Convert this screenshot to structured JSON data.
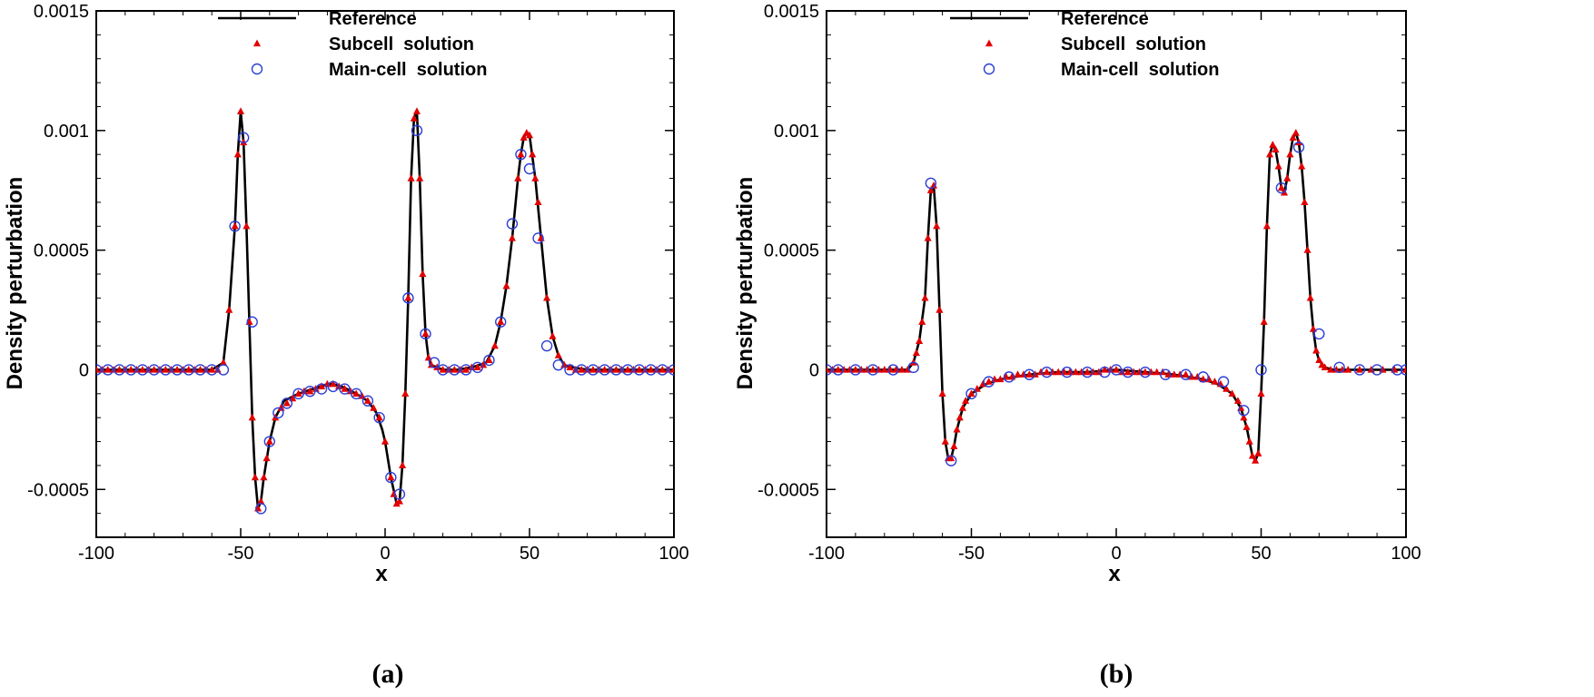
{
  "chart_data": [
    {
      "type": "line",
      "panel_label": "(a)",
      "xlabel": "x",
      "ylabel": "Density perturbation",
      "xlim": [
        -100,
        100
      ],
      "ylim": [
        -0.0007,
        0.0015
      ],
      "x_ticks": [
        -100,
        -50,
        0,
        50,
        100
      ],
      "x_tick_labels": [
        "-100",
        "-50",
        "0",
        "50",
        "100"
      ],
      "y_ticks": [
        -0.0005,
        0,
        0.0005,
        0.001,
        0.0015
      ],
      "y_tick_labels": [
        "-0.0005",
        "0",
        "0.0005",
        "0.001",
        "0.0015"
      ],
      "legend": [
        "Reference",
        "Subcell  solution",
        "Main-cell  solution"
      ],
      "legend_position": "top-center",
      "grid": false,
      "series": [
        {
          "name": "Reference",
          "style": "line",
          "color": "#000000",
          "x": [
            -100,
            -60,
            -56,
            -54,
            -52,
            -51,
            -50,
            -49,
            -48,
            -47,
            -46,
            -45,
            -44,
            -43,
            -42,
            -40,
            -38,
            -35,
            -30,
            -25,
            -20,
            -18,
            -15,
            -10,
            -6,
            -3,
            -1,
            0,
            2,
            4,
            5,
            6,
            7,
            8,
            9,
            10,
            11,
            12,
            13,
            14,
            15,
            16,
            18,
            20,
            25,
            30,
            35,
            38,
            40,
            42,
            44,
            46,
            47,
            48,
            49,
            50,
            52,
            54,
            56,
            58,
            60,
            62,
            65,
            70,
            100
          ],
          "y": [
            0,
            0,
            3e-05,
            0.00025,
            0.0006,
            0.0009,
            0.00108,
            0.00095,
            0.0006,
            0.0002,
            -0.0002,
            -0.00045,
            -0.00058,
            -0.00055,
            -0.00045,
            -0.0003,
            -0.0002,
            -0.00013,
            -0.0001,
            -8e-05,
            -6e-05,
            -6e-05,
            -7e-05,
            -0.0001,
            -0.00013,
            -0.00018,
            -0.00025,
            -0.0003,
            -0.00045,
            -0.00056,
            -0.00055,
            -0.0004,
            -0.0001,
            0.0003,
            0.0008,
            0.00105,
            0.00108,
            0.0008,
            0.0004,
            0.00015,
            5e-05,
            2e-05,
            1e-05,
            0,
            0,
            1e-05,
            3e-05,
            0.0001,
            0.0002,
            0.00035,
            0.00055,
            0.0008,
            0.0009,
            0.00097,
            0.00099,
            0.00098,
            0.0008,
            0.00055,
            0.0003,
            0.00014,
            6e-05,
            2e-05,
            1e-05,
            0,
            0
          ]
        },
        {
          "name": "Subcell  solution",
          "style": "triangle",
          "color": "#e00000",
          "x": [
            -100,
            -98,
            -96,
            -94,
            -92,
            -90,
            -88,
            -86,
            -84,
            -82,
            -80,
            -78,
            -76,
            -74,
            -72,
            -70,
            -68,
            -66,
            -64,
            -62,
            -60,
            -58,
            -56,
            -54,
            -52,
            -51,
            -50,
            -49,
            -48,
            -47,
            -46,
            -45,
            -44,
            -43,
            -42,
            -41,
            -40,
            -38,
            -36,
            -34,
            -32,
            -30,
            -28,
            -26,
            -24,
            -22,
            -20,
            -18,
            -16,
            -14,
            -12,
            -10,
            -8,
            -6,
            -4,
            -2,
            0,
            2,
            3,
            4,
            5,
            6,
            7,
            8,
            9,
            10,
            11,
            12,
            13,
            14,
            15,
            16,
            18,
            20,
            22,
            24,
            26,
            28,
            30,
            32,
            34,
            36,
            38,
            40,
            42,
            44,
            46,
            47,
            48,
            49,
            50,
            51,
            52,
            53,
            54,
            56,
            58,
            60,
            62,
            64,
            66,
            68,
            70,
            72,
            74,
            76,
            78,
            80,
            82,
            84,
            86,
            88,
            90,
            92,
            94,
            96,
            98,
            100
          ],
          "y": [
            0,
            0,
            0,
            0,
            0,
            0,
            0,
            0,
            0,
            0,
            0,
            0,
            0,
            0,
            0,
            0,
            0,
            0,
            0,
            0,
            0,
            0,
            3e-05,
            0.00025,
            0.0006,
            0.0009,
            0.00108,
            0.00095,
            0.0006,
            0.0002,
            -0.0002,
            -0.00045,
            -0.00058,
            -0.00055,
            -0.00045,
            -0.00037,
            -0.0003,
            -0.0002,
            -0.00016,
            -0.00014,
            -0.00012,
            -0.0001,
            -9e-05,
            -9e-05,
            -8e-05,
            -7e-05,
            -6e-05,
            -6e-05,
            -7e-05,
            -8e-05,
            -9e-05,
            -0.0001,
            -0.00011,
            -0.00013,
            -0.00016,
            -0.0002,
            -0.0003,
            -0.00045,
            -0.00052,
            -0.00056,
            -0.00055,
            -0.0004,
            -0.0001,
            0.0003,
            0.0008,
            0.00105,
            0.00108,
            0.0008,
            0.0004,
            0.00015,
            5e-05,
            2e-05,
            1e-05,
            0,
            0,
            0,
            0,
            0,
            1e-05,
            1e-05,
            2e-05,
            4e-05,
            0.0001,
            0.0002,
            0.00035,
            0.00055,
            0.0008,
            0.0009,
            0.00097,
            0.00099,
            0.00098,
            0.0009,
            0.0008,
            0.0007,
            0.00055,
            0.0003,
            0.00014,
            6e-05,
            2e-05,
            1e-05,
            0,
            0,
            0,
            0,
            0,
            0,
            0,
            0,
            0,
            0,
            0,
            0,
            0,
            0,
            0,
            0,
            0,
            0
          ]
        },
        {
          "name": "Main-cell  solution",
          "style": "circle",
          "color": "#2b3fd6",
          "x": [
            -100,
            -96,
            -92,
            -88,
            -84,
            -80,
            -76,
            -72,
            -68,
            -64,
            -60,
            -56,
            -52,
            -49,
            -46,
            -43,
            -40,
            -37,
            -34,
            -30,
            -26,
            -22,
            -18,
            -14,
            -10,
            -6,
            -2,
            2,
            5,
            8,
            11,
            14,
            17,
            20,
            24,
            28,
            32,
            36,
            40,
            44,
            47,
            50,
            53,
            56,
            60,
            64,
            68,
            72,
            76,
            80,
            84,
            88,
            92,
            96,
            100
          ],
          "y": [
            0,
            0,
            0,
            0,
            0,
            0,
            0,
            0,
            0,
            0,
            0,
            0,
            0.0006,
            0.00097,
            0.0002,
            -0.00058,
            -0.0003,
            -0.00018,
            -0.00014,
            -0.0001,
            -9e-05,
            -8e-05,
            -7e-05,
            -8e-05,
            -0.0001,
            -0.00013,
            -0.0002,
            -0.00045,
            -0.00052,
            0.0003,
            0.001,
            0.00015,
            3e-05,
            0,
            0,
            0,
            1e-05,
            4e-05,
            0.0002,
            0.00061,
            0.0009,
            0.00084,
            0.00055,
            0.0001,
            2e-05,
            0,
            0,
            0,
            0,
            0,
            0,
            0,
            0,
            0,
            0
          ]
        }
      ]
    },
    {
      "type": "line",
      "panel_label": "(b)",
      "xlabel": "x",
      "ylabel": "Density perturbation",
      "xlim": [
        -100,
        100
      ],
      "ylim": [
        -0.0007,
        0.0015
      ],
      "x_ticks": [
        -100,
        -50,
        0,
        50,
        100
      ],
      "x_tick_labels": [
        "-100",
        "-50",
        "0",
        "50",
        "100"
      ],
      "y_ticks": [
        -0.0005,
        0,
        0.0005,
        0.001,
        0.0015
      ],
      "y_tick_labels": [
        "-0.0005",
        "0",
        "0.0005",
        "0.001",
        "0.0015"
      ],
      "legend": [
        "Reference",
        "Subcell  solution",
        "Main-cell  solution"
      ],
      "legend_position": "top-center",
      "grid": false,
      "series": [
        {
          "name": "Reference",
          "style": "line",
          "color": "#000000",
          "x": [
            -100,
            -72,
            -70,
            -68,
            -66,
            -65,
            -64,
            -63,
            -62,
            -61,
            -60,
            -59,
            -58,
            -57,
            -56,
            -55,
            -53,
            -50,
            -45,
            -40,
            -30,
            -20,
            -10,
            0,
            10,
            20,
            30,
            35,
            40,
            43,
            45,
            46,
            47,
            48,
            49,
            50,
            51,
            52,
            53,
            54,
            55,
            56,
            57,
            58,
            59,
            60,
            61,
            62,
            63,
            64,
            65,
            66,
            67,
            68,
            69,
            70,
            72,
            75,
            100
          ],
          "y": [
            0,
            0,
            3e-05,
            0.00012,
            0.0003,
            0.00055,
            0.00075,
            0.00077,
            0.0006,
            0.00025,
            -0.0001,
            -0.0003,
            -0.00037,
            -0.00037,
            -0.00032,
            -0.00025,
            -0.00016,
            -0.0001,
            -6e-05,
            -4e-05,
            -2e-05,
            -1e-05,
            -1e-05,
            0,
            -1e-05,
            -2e-05,
            -4e-05,
            -6e-05,
            -0.0001,
            -0.00016,
            -0.00024,
            -0.0003,
            -0.00036,
            -0.00038,
            -0.00035,
            -0.0001,
            0.0002,
            0.0006,
            0.0009,
            0.00094,
            0.00092,
            0.00085,
            0.00076,
            0.00074,
            0.0008,
            0.0009,
            0.00097,
            0.00099,
            0.00095,
            0.00085,
            0.0007,
            0.0005,
            0.0003,
            0.00017,
            8e-05,
            4e-05,
            1e-05,
            0,
            0
          ]
        },
        {
          "name": "Subcell  solution",
          "style": "triangle",
          "color": "#e00000",
          "x": [
            -100,
            -98,
            -96,
            -94,
            -92,
            -90,
            -88,
            -86,
            -84,
            -82,
            -80,
            -78,
            -76,
            -74,
            -72,
            -70,
            -69,
            -68,
            -67,
            -66,
            -65,
            -64,
            -63,
            -62,
            -61,
            -60,
            -59,
            -58,
            -57,
            -56,
            -55,
            -54,
            -53,
            -52,
            -50,
            -48,
            -46,
            -44,
            -42,
            -40,
            -38,
            -36,
            -34,
            -32,
            -30,
            -28,
            -26,
            -24,
            -22,
            -20,
            -18,
            -16,
            -14,
            -12,
            -10,
            -8,
            -6,
            -4,
            -2,
            0,
            2,
            4,
            6,
            8,
            10,
            12,
            14,
            16,
            18,
            20,
            22,
            24,
            26,
            28,
            30,
            32,
            34,
            36,
            38,
            40,
            42,
            43,
            44,
            45,
            46,
            47,
            48,
            49,
            50,
            51,
            52,
            53,
            54,
            55,
            56,
            57,
            58,
            59,
            60,
            61,
            62,
            63,
            64,
            65,
            66,
            67,
            68,
            69,
            70,
            71,
            72,
            74,
            76,
            78,
            80,
            84,
            88,
            92,
            96,
            100
          ],
          "y": [
            0,
            0,
            0,
            0,
            0,
            0,
            0,
            0,
            0,
            0,
            0,
            0,
            0,
            0,
            0,
            3e-05,
            7e-05,
            0.00012,
            0.0002,
            0.0003,
            0.00055,
            0.00075,
            0.00077,
            0.0006,
            0.00025,
            -0.0001,
            -0.0003,
            -0.00037,
            -0.00037,
            -0.00032,
            -0.00025,
            -0.0002,
            -0.00016,
            -0.00013,
            -0.0001,
            -8e-05,
            -6e-05,
            -5e-05,
            -4e-05,
            -4e-05,
            -3e-05,
            -3e-05,
            -2e-05,
            -2e-05,
            -2e-05,
            -2e-05,
            -1e-05,
            -1e-05,
            -1e-05,
            -1e-05,
            -1e-05,
            -1e-05,
            -1e-05,
            -1e-05,
            -1e-05,
            -1e-05,
            -1e-05,
            0,
            0,
            0,
            -1e-05,
            -1e-05,
            -1e-05,
            -1e-05,
            -1e-05,
            -1e-05,
            -1e-05,
            -1e-05,
            -2e-05,
            -2e-05,
            -2e-05,
            -2e-05,
            -3e-05,
            -3e-05,
            -4e-05,
            -4e-05,
            -5e-05,
            -6e-05,
            -8e-05,
            -0.0001,
            -0.00013,
            -0.00016,
            -0.0002,
            -0.00024,
            -0.0003,
            -0.00036,
            -0.00038,
            -0.00035,
            -0.0001,
            0.0002,
            0.0006,
            0.0009,
            0.00094,
            0.00092,
            0.00085,
            0.00076,
            0.00074,
            0.0008,
            0.0009,
            0.00097,
            0.00099,
            0.00095,
            0.00085,
            0.0007,
            0.0005,
            0.0003,
            0.00017,
            8e-05,
            4e-05,
            2e-05,
            1e-05,
            0,
            0,
            0,
            0,
            0,
            0,
            0,
            0,
            0
          ]
        },
        {
          "name": "Main-cell  solution",
          "style": "circle",
          "color": "#2b3fd6",
          "x": [
            -100,
            -96,
            -90,
            -84,
            -77,
            -70,
            -64,
            -57,
            -50,
            -44,
            -37,
            -30,
            -24,
            -17,
            -10,
            -4,
            0,
            4,
            10,
            17,
            24,
            30,
            37,
            44,
            50,
            57,
            63,
            70,
            77,
            84,
            90,
            97,
            100
          ],
          "y": [
            0,
            0,
            0,
            0,
            0,
            1e-05,
            0.00078,
            -0.00038,
            -0.0001,
            -5e-05,
            -3e-05,
            -2e-05,
            -1e-05,
            -1e-05,
            -1e-05,
            -1e-05,
            0,
            -1e-05,
            -1e-05,
            -2e-05,
            -2e-05,
            -3e-05,
            -5e-05,
            -0.00017,
            0,
            0.00076,
            0.00093,
            0.00015,
            1e-05,
            0,
            0,
            0,
            0
          ]
        }
      ]
    }
  ]
}
